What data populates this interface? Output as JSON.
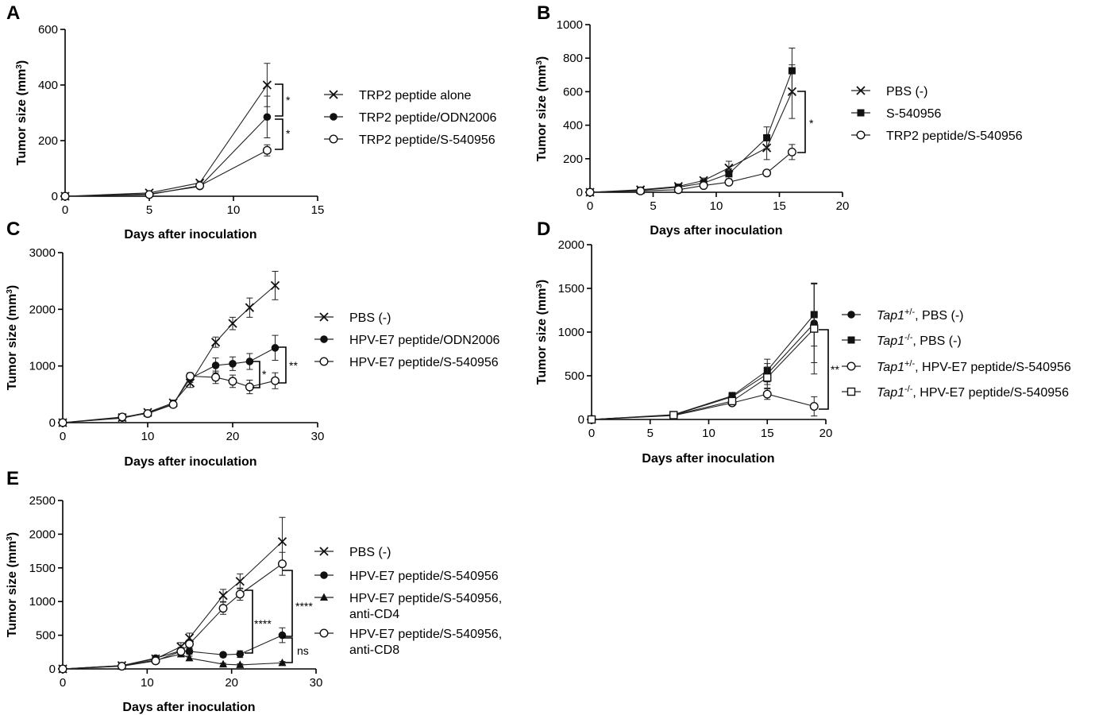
{
  "chart_data": [
    {
      "id": "A",
      "type": "line",
      "panel_label": "A",
      "xlabel": "Days after inoculation",
      "ylabel": "Tumor size (mm³)",
      "xlim": [
        0,
        15
      ],
      "ylim": [
        0,
        600
      ],
      "xticks": [
        0,
        5,
        10,
        15
      ],
      "yticks": [
        0,
        200,
        400,
        600
      ],
      "series": [
        {
          "name": "TRP2 peptide alone",
          "marker": "x",
          "x": [
            0,
            5,
            8,
            12
          ],
          "y": [
            0,
            12,
            48,
            400
          ],
          "err": [
            0,
            3,
            6,
            78
          ]
        },
        {
          "name": "TRP2 peptide/ODN2006",
          "marker": "dot",
          "x": [
            0,
            5,
            8,
            12
          ],
          "y": [
            0,
            8,
            35,
            285
          ],
          "err": [
            0,
            3,
            5,
            75
          ]
        },
        {
          "name": "TRP2 peptide/S-540956",
          "marker": "circle",
          "x": [
            0,
            5,
            8,
            12
          ],
          "y": [
            0,
            6,
            38,
            165
          ],
          "err": [
            0,
            3,
            5,
            20
          ]
        }
      ],
      "annotations": [
        {
          "text": "*",
          "between": [
            "TRP2 peptide alone",
            "TRP2 peptide/ODN2006"
          ],
          "at_x": 12
        },
        {
          "text": "*",
          "between": [
            "TRP2 peptide/ODN2006",
            "TRP2 peptide/S-540956"
          ],
          "at_x": 12
        }
      ]
    },
    {
      "id": "B",
      "type": "line",
      "panel_label": "B",
      "xlabel": "Days after inoculation",
      "ylabel": "Tumor size (mm³)",
      "xlim": [
        0,
        20
      ],
      "ylim": [
        0,
        1000
      ],
      "xticks": [
        0,
        5,
        10,
        15,
        20
      ],
      "yticks": [
        0,
        200,
        400,
        600,
        800,
        1000
      ],
      "series": [
        {
          "name": "PBS (-)",
          "marker": "x",
          "x": [
            0,
            4,
            7,
            9,
            11,
            14,
            16
          ],
          "y": [
            0,
            15,
            35,
            70,
            145,
            265,
            600
          ],
          "err": [
            0,
            5,
            10,
            15,
            40,
            70,
            160
          ]
        },
        {
          "name": "S-540956",
          "marker": "square",
          "x": [
            0,
            4,
            7,
            9,
            11,
            14,
            16
          ],
          "y": [
            0,
            12,
            30,
            55,
            110,
            325,
            725
          ],
          "err": [
            0,
            5,
            10,
            15,
            30,
            65,
            135
          ]
        },
        {
          "name": "TRP2 peptide/S-540956",
          "marker": "circle",
          "x": [
            0,
            4,
            7,
            9,
            11,
            14,
            16
          ],
          "y": [
            0,
            8,
            15,
            40,
            60,
            115,
            240
          ],
          "err": [
            0,
            3,
            5,
            8,
            10,
            15,
            45
          ]
        }
      ],
      "annotations": [
        {
          "text": "*",
          "between": [
            "PBS (-)",
            "TRP2 peptide/S-540956"
          ],
          "at_x": 16
        }
      ]
    },
    {
      "id": "C",
      "type": "line",
      "panel_label": "C",
      "xlabel": "Days after inoculation",
      "ylabel": "Tumor size (mm³)",
      "xlim": [
        0,
        30
      ],
      "ylim": [
        0,
        3000
      ],
      "xticks": [
        0,
        10,
        20,
        30
      ],
      "yticks": [
        0,
        1000,
        2000,
        3000
      ],
      "series": [
        {
          "name": "PBS (-)",
          "marker": "x",
          "x": [
            0,
            7,
            10,
            13,
            15,
            18,
            20,
            22,
            25
          ],
          "y": [
            0,
            90,
            180,
            350,
            700,
            1420,
            1750,
            2030,
            2420
          ],
          "err": [
            0,
            20,
            30,
            50,
            80,
            90,
            110,
            170,
            250
          ]
        },
        {
          "name": "HPV-E7 peptide/ODN2006",
          "marker": "dot",
          "x": [
            0,
            7,
            10,
            13,
            15,
            18,
            20,
            22,
            25
          ],
          "y": [
            0,
            80,
            170,
            330,
            780,
            1010,
            1040,
            1080,
            1320
          ],
          "err": [
            0,
            20,
            30,
            50,
            70,
            130,
            120,
            140,
            220
          ]
        },
        {
          "name": "HPV-E7 peptide/S-540956",
          "marker": "circle",
          "x": [
            0,
            7,
            10,
            13,
            15,
            18,
            20,
            22,
            25
          ],
          "y": [
            0,
            100,
            160,
            320,
            820,
            800,
            730,
            630,
            740
          ],
          "err": [
            0,
            20,
            30,
            50,
            60,
            110,
            110,
            120,
            140
          ]
        }
      ],
      "annotations": [
        {
          "text": "*",
          "between": [
            "HPV-E7 peptide/ODN2006",
            "HPV-E7 peptide/S-540956"
          ],
          "at_x": 22
        },
        {
          "text": "**",
          "between": [
            "HPV-E7 peptide/ODN2006",
            "HPV-E7 peptide/S-540956"
          ],
          "at_x": 25
        }
      ]
    },
    {
      "id": "D",
      "type": "line",
      "panel_label": "D",
      "xlabel": "Days after inoculation",
      "ylabel": "Tumor size (mm³)",
      "xlim": [
        0,
        20
      ],
      "ylim": [
        0,
        2000
      ],
      "xticks": [
        0,
        5,
        10,
        15,
        20
      ],
      "yticks": [
        0,
        500,
        1000,
        1500,
        2000
      ],
      "series": [
        {
          "name_italic": "Tap1",
          "name_sup": "+/-",
          "name_rest": ", PBS (-)",
          "marker": "dot",
          "x": [
            0,
            7,
            12,
            15,
            19
          ],
          "y": [
            0,
            50,
            260,
            520,
            1100
          ],
          "err": [
            0,
            10,
            40,
            120,
            450
          ]
        },
        {
          "name_italic": "Tap1",
          "name_sup": "-/-",
          "name_rest": ", PBS (-)",
          "marker": "square",
          "x": [
            0,
            7,
            12,
            15,
            19
          ],
          "y": [
            0,
            55,
            270,
            560,
            1200
          ],
          "err": [
            0,
            10,
            40,
            130,
            360
          ]
        },
        {
          "name_italic": "Tap1",
          "name_sup": "+/-",
          "name_rest": ", HPV-E7 peptide/S-540956",
          "marker": "circle",
          "x": [
            0,
            7,
            12,
            15,
            19
          ],
          "y": [
            0,
            45,
            190,
            290,
            150
          ],
          "err": [
            0,
            10,
            30,
            60,
            110
          ]
        },
        {
          "name_italic": "Tap1",
          "name_sup": "-/-",
          "name_rest": ", HPV-E7 peptide/S-540956",
          "marker": "opensquare",
          "x": [
            0,
            7,
            12,
            15,
            19
          ],
          "y": [
            0,
            50,
            210,
            480,
            1040
          ],
          "err": [
            0,
            10,
            30,
            120,
            520
          ]
        }
      ],
      "annotations": [
        {
          "text": "**",
          "between": [
            "Tap1-/-, HPV-E7 peptide/S-540956",
            "Tap1+/-, HPV-E7 peptide/S-540956"
          ],
          "at_x": 19
        }
      ]
    },
    {
      "id": "E",
      "type": "line",
      "panel_label": "E",
      "xlabel": "Days after inoculation",
      "ylabel": "Tumor size (mm³)",
      "xlim": [
        0,
        30
      ],
      "ylim": [
        0,
        2500
      ],
      "xticks": [
        0,
        10,
        20,
        30
      ],
      "yticks": [
        0,
        500,
        1000,
        1500,
        2000,
        2500
      ],
      "series": [
        {
          "name": "PBS (-)",
          "marker": "x",
          "x": [
            0,
            7,
            11,
            14,
            15,
            19,
            21,
            26
          ],
          "y": [
            0,
            50,
            150,
            330,
            460,
            1090,
            1300,
            1890
          ],
          "err": [
            0,
            10,
            30,
            60,
            70,
            90,
            110,
            360
          ]
        },
        {
          "name": "HPV-E7 peptide/S-540956",
          "marker": "dot",
          "x": [
            0,
            7,
            11,
            14,
            15,
            19,
            21,
            26
          ],
          "y": [
            0,
            50,
            160,
            270,
            260,
            210,
            220,
            500
          ],
          "err": [
            0,
            10,
            30,
            50,
            40,
            30,
            50,
            110
          ]
        },
        {
          "name_line1": "HPV-E7 peptide/S-540956,",
          "name_line2": "anti-CD4",
          "marker": "triangle",
          "x": [
            0,
            7,
            11,
            14,
            15,
            19,
            21,
            26
          ],
          "y": [
            0,
            45,
            130,
            220,
            160,
            70,
            60,
            90
          ],
          "err": [
            0,
            10,
            20,
            40,
            30,
            15,
            15,
            20
          ]
        },
        {
          "name_line1": "HPV-E7 peptide/S-540956,",
          "name_line2": "anti-CD8",
          "marker": "circle",
          "x": [
            0,
            7,
            11,
            14,
            15,
            19,
            21,
            26
          ],
          "y": [
            0,
            40,
            120,
            260,
            370,
            900,
            1110,
            1560
          ],
          "err": [
            0,
            10,
            30,
            60,
            60,
            90,
            90,
            170
          ]
        }
      ],
      "annotations": [
        {
          "text": "****",
          "between": [
            "PBS (-)",
            "HPV-E7 peptide/S-540956"
          ],
          "at_x": 26
        },
        {
          "text": "****",
          "between": [
            "PBS (-)",
            "HPV-E7 peptide/S-540956"
          ],
          "at_x": 21
        },
        {
          "text": "ns",
          "between": [
            "HPV-E7 peptide/S-540956",
            "anti-CD4"
          ],
          "at_x": 26
        }
      ]
    }
  ]
}
